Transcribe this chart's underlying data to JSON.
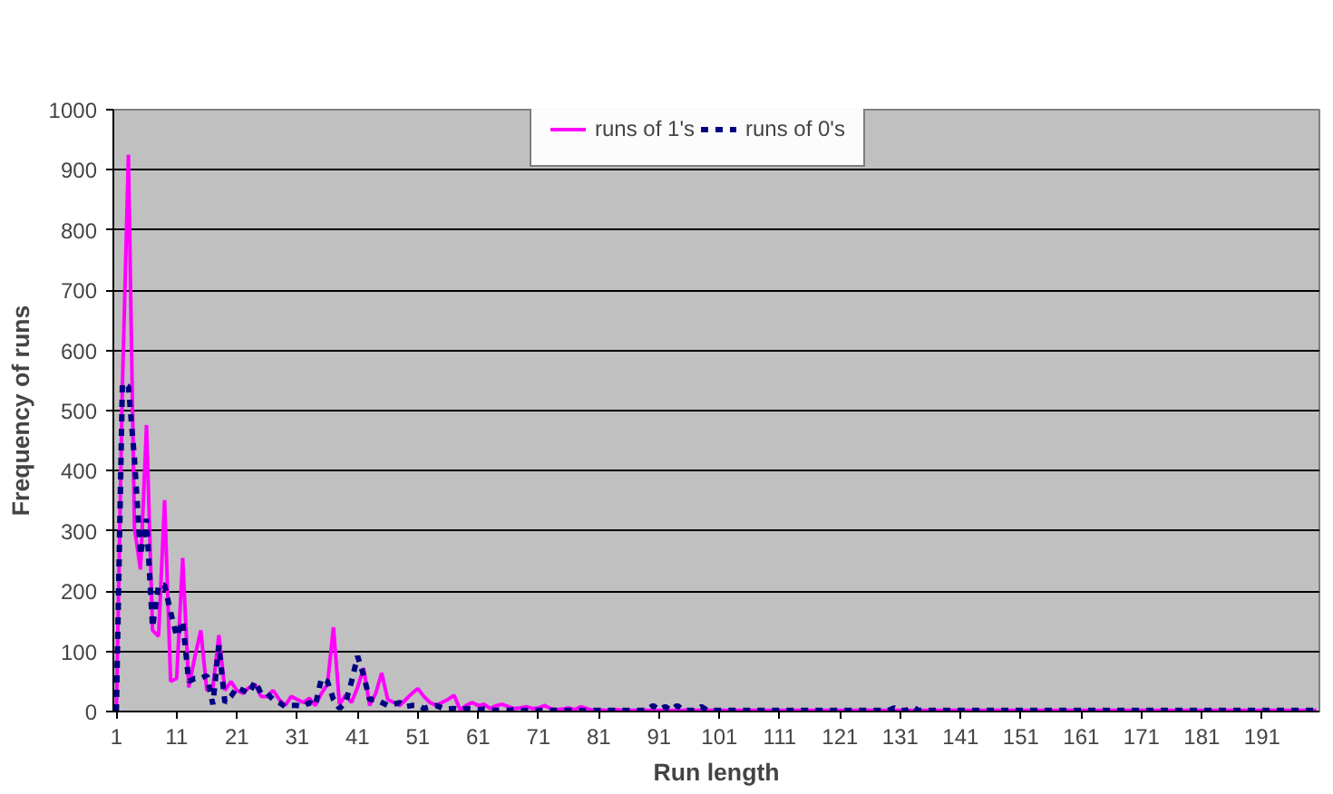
{
  "chart_data": {
    "type": "line",
    "xlabel": "Run length",
    "ylabel": "Frequency of runs",
    "x": [
      1,
      2,
      3,
      4,
      5,
      6,
      7,
      8,
      9,
      10,
      11,
      12,
      13,
      14,
      15,
      16,
      17,
      18,
      19,
      20,
      21,
      22,
      23,
      24,
      25,
      26,
      27,
      28,
      29,
      30,
      31,
      32,
      33,
      34,
      35,
      36,
      37,
      38,
      39,
      40,
      41,
      42,
      43,
      44,
      45,
      46,
      47,
      48,
      49,
      50,
      51,
      52,
      53,
      54,
      55,
      56,
      57,
      58,
      59,
      60,
      61,
      62,
      63,
      64,
      65,
      66,
      67,
      68,
      69,
      70,
      71,
      72,
      73,
      74,
      75,
      76,
      77,
      78,
      79,
      80,
      81,
      82,
      83,
      84,
      85,
      86,
      87,
      88,
      89,
      90,
      91,
      92,
      93,
      94,
      95,
      96,
      97,
      98,
      99,
      100,
      101,
      102,
      103,
      104,
      105,
      106,
      107,
      108,
      109,
      110,
      111,
      112,
      113,
      114,
      115,
      116,
      117,
      118,
      119,
      120,
      121,
      122,
      123,
      124,
      125,
      126,
      127,
      128,
      129,
      130,
      131,
      132,
      133,
      134,
      135,
      136,
      137,
      138,
      139,
      140,
      141,
      142,
      143,
      144,
      145,
      146,
      147,
      148,
      149,
      150,
      151,
      152,
      153,
      154,
      155,
      156,
      157,
      158,
      159,
      160,
      161,
      162,
      163,
      164,
      165,
      166,
      167,
      168,
      169,
      170,
      171,
      172,
      173,
      174,
      175,
      176,
      177,
      178,
      179,
      180,
      181,
      182,
      183,
      184,
      185,
      186,
      187,
      188,
      189,
      190,
      191,
      192,
      193,
      194,
      195,
      196,
      197,
      198,
      199,
      200
    ],
    "xlim": [
      0.5,
      200.5
    ],
    "xticks": [
      1,
      11,
      21,
      31,
      41,
      51,
      61,
      71,
      81,
      91,
      101,
      111,
      121,
      131,
      141,
      151,
      161,
      171,
      181,
      191
    ],
    "ylim": [
      0,
      1000
    ],
    "yticks": [
      0,
      100,
      200,
      300,
      400,
      500,
      600,
      700,
      800,
      900,
      1000
    ],
    "grid": "y",
    "legend": "top",
    "series": [
      {
        "name": "runs of 1's",
        "color": "#ff00ff",
        "line_style": "solid",
        "values": [
          0,
          540,
          925,
          305,
          236,
          476,
          135,
          125,
          351,
          50,
          55,
          255,
          40,
          90,
          135,
          35,
          40,
          127,
          35,
          50,
          35,
          30,
          40,
          45,
          25,
          25,
          35,
          20,
          10,
          25,
          20,
          15,
          22,
          10,
          30,
          45,
          140,
          12,
          27,
          15,
          40,
          72,
          10,
          30,
          64,
          20,
          15,
          10,
          20,
          30,
          38,
          25,
          15,
          10,
          15,
          20,
          27,
          3,
          10,
          15,
          10,
          12,
          5,
          10,
          12,
          8,
          5,
          6,
          8,
          5,
          6,
          10,
          5,
          3,
          4,
          6,
          3,
          8,
          5,
          2,
          3,
          2,
          2,
          3,
          2,
          2,
          2,
          3,
          2,
          2,
          2,
          2,
          2,
          2,
          2,
          3,
          2,
          2,
          2,
          2,
          2,
          2,
          2,
          2,
          2,
          2,
          2,
          2,
          2,
          2,
          2,
          2,
          2,
          2,
          2,
          2,
          2,
          2,
          2,
          2,
          2,
          2,
          2,
          2,
          2,
          2,
          2,
          2,
          2,
          2,
          2,
          2,
          2,
          2,
          2,
          2,
          2,
          2,
          2,
          2,
          2,
          2,
          2,
          2,
          2,
          2,
          2,
          2,
          2,
          2,
          2,
          2,
          2,
          2,
          2,
          2,
          2,
          2,
          2,
          2,
          2,
          2,
          2,
          2,
          2,
          2,
          2,
          2,
          2,
          2,
          2,
          2,
          2,
          2,
          2,
          2,
          2,
          2,
          2,
          2,
          2,
          2,
          2,
          2,
          2,
          2,
          2,
          2,
          2,
          2,
          2,
          2,
          2,
          2,
          2,
          2,
          2,
          2,
          2,
          2
        ]
      },
      {
        "name": "runs of 0's",
        "color": "#000080",
        "line_style": "dashed",
        "values": [
          0,
          545,
          540,
          420,
          260,
          320,
          140,
          210,
          210,
          165,
          125,
          150,
          50,
          55,
          55,
          60,
          12,
          110,
          15,
          25,
          40,
          35,
          30,
          50,
          30,
          30,
          20,
          15,
          8,
          10,
          10,
          8,
          15,
          10,
          55,
          50,
          20,
          5,
          15,
          50,
          92,
          60,
          20,
          20,
          15,
          10,
          12,
          15,
          8,
          10,
          10,
          5,
          8,
          10,
          6,
          4,
          5,
          3,
          5,
          4,
          3,
          4,
          3,
          2,
          3,
          2,
          3,
          2,
          2,
          2,
          2,
          2,
          2,
          2,
          2,
          2,
          2,
          2,
          2,
          2,
          2,
          2,
          2,
          2,
          2,
          2,
          2,
          2,
          2,
          10,
          3,
          8,
          2,
          10,
          2,
          2,
          2,
          8,
          2,
          2,
          2,
          2,
          2,
          2,
          2,
          2,
          2,
          2,
          2,
          2,
          2,
          2,
          2,
          2,
          2,
          2,
          2,
          2,
          2,
          2,
          2,
          2,
          2,
          2,
          2,
          2,
          2,
          2,
          2,
          6,
          2,
          2,
          8,
          2,
          2,
          2,
          2,
          2,
          2,
          2,
          2,
          2,
          2,
          2,
          2,
          2,
          2,
          2,
          2,
          2,
          2,
          2,
          2,
          2,
          2,
          2,
          2,
          2,
          2,
          2,
          2,
          2,
          2,
          2,
          2,
          2,
          2,
          2,
          2,
          2,
          2,
          2,
          2,
          2,
          2,
          2,
          2,
          2,
          2,
          2,
          2,
          2,
          2,
          2,
          2,
          2,
          2,
          2,
          2,
          2,
          2,
          2,
          2,
          2,
          2,
          2,
          2,
          2,
          2,
          2
        ]
      }
    ]
  }
}
